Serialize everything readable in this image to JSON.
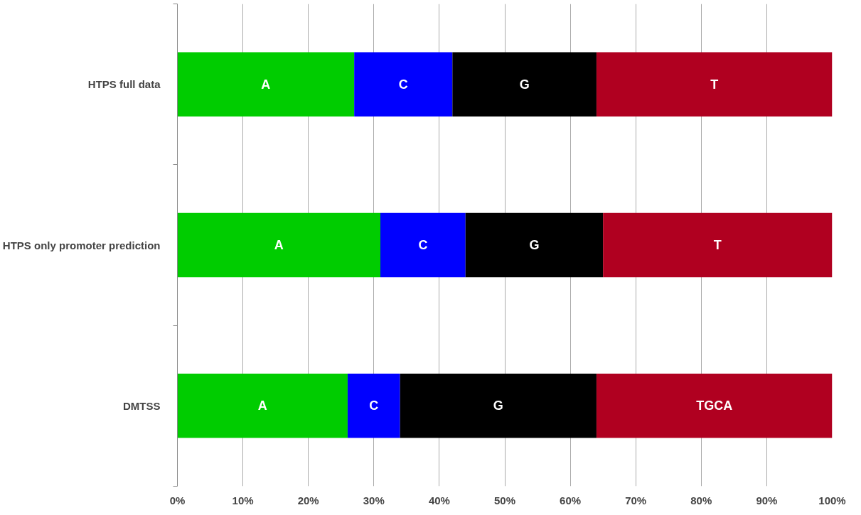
{
  "chart_data": {
    "type": "bar",
    "orientation": "horizontal",
    "stacked": true,
    "categories": [
      "HTPS full data",
      "HTPS only promoter prediction",
      "DMTSS"
    ],
    "series": [
      {
        "color": "#00cc00",
        "values": [
          27,
          31,
          26
        ],
        "value_labels": [
          "A",
          "A",
          "A"
        ]
      },
      {
        "color": "#0000ff",
        "values": [
          15,
          13,
          8
        ],
        "value_labels": [
          "C",
          "C",
          "C"
        ]
      },
      {
        "color": "#000000",
        "values": [
          22,
          21,
          30
        ],
        "value_labels": [
          "G",
          "G",
          "G"
        ]
      },
      {
        "color": "#b00020",
        "values": [
          36,
          35,
          36
        ],
        "value_labels": [
          "T",
          "T",
          "TGCA"
        ]
      }
    ],
    "xlim": [
      0,
      100
    ],
    "xticks": [
      {
        "value": 0,
        "label": "0%"
      },
      {
        "value": 10,
        "label": "10%"
      },
      {
        "value": 20,
        "label": "20%"
      },
      {
        "value": 30,
        "label": "30%"
      },
      {
        "value": 40,
        "label": "40%"
      },
      {
        "value": 50,
        "label": "50%"
      },
      {
        "value": 60,
        "label": "60%"
      },
      {
        "value": 70,
        "label": "70%"
      },
      {
        "value": 80,
        "label": "80%"
      },
      {
        "value": 90,
        "label": "90%"
      },
      {
        "value": 100,
        "label": "100%"
      }
    ],
    "grid": "x"
  }
}
